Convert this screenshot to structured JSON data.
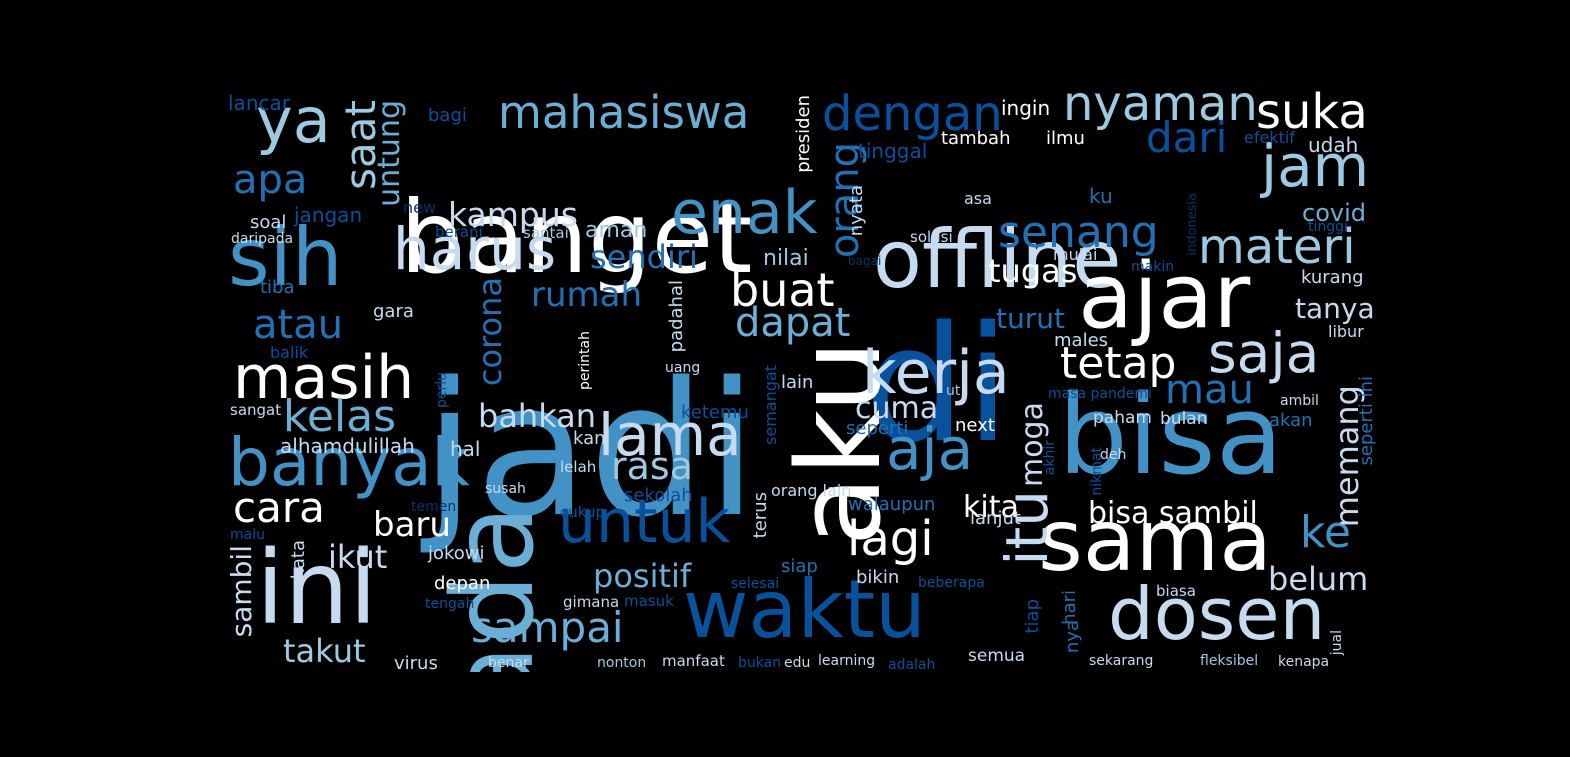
{
  "words": [
    {
      "text": "jadi",
      "c": 4
    },
    {
      "text": "di",
      "c": 6
    },
    {
      "text": "banget",
      "c": 0
    },
    {
      "text": "offline",
      "c": 1
    },
    {
      "text": "bisa",
      "c": 4
    },
    {
      "text": "ada",
      "c": 3
    },
    {
      "text": "aku",
      "c": 0
    },
    {
      "text": "ini",
      "c": 1
    },
    {
      "text": "sih",
      "c": 4
    },
    {
      "text": "ajar",
      "c": 0
    },
    {
      "text": "waktu",
      "c": 6
    },
    {
      "text": "sama",
      "c": 0
    },
    {
      "text": "dosen",
      "c": 1
    },
    {
      "text": "banyak",
      "c": 4
    },
    {
      "text": "masih",
      "c": 0
    },
    {
      "text": "harus",
      "c": 1
    },
    {
      "text": "enak",
      "c": 4
    },
    {
      "text": "kerja",
      "c": 1
    },
    {
      "text": "lama",
      "c": 1
    },
    {
      "text": "untuk",
      "c": 6
    },
    {
      "text": "saja",
      "c": 1
    },
    {
      "text": "aja",
      "c": 4
    },
    {
      "text": "jam",
      "c": 2
    },
    {
      "text": "ya",
      "c": 2
    },
    {
      "text": "mahasiswa",
      "c": 3
    },
    {
      "text": "dengan",
      "c": 6
    },
    {
      "text": "nyaman",
      "c": 2
    },
    {
      "text": "suka",
      "c": 0
    },
    {
      "text": "materi",
      "c": 2
    },
    {
      "text": "senang",
      "c": 5
    },
    {
      "text": "buat",
      "c": 0
    },
    {
      "text": "dapat",
      "c": 3
    },
    {
      "text": "tetap",
      "c": 0
    },
    {
      "text": "lagi",
      "c": 0
    },
    {
      "text": "sampai",
      "c": 3
    },
    {
      "text": "kelas",
      "c": 3
    },
    {
      "text": "rasa",
      "c": 2
    },
    {
      "text": "cara",
      "c": 0
    },
    {
      "text": "apa",
      "c": 5
    },
    {
      "text": "atau",
      "c": 5
    },
    {
      "text": "dari",
      "c": 6
    },
    {
      "text": "saat",
      "c": 2
    },
    {
      "text": "itu",
      "c": 1
    },
    {
      "text": "mau",
      "c": 5
    },
    {
      "text": "ke",
      "c": 4
    },
    {
      "text": "orang",
      "c": 5
    },
    {
      "text": "untung",
      "c": 3
    },
    {
      "text": "kampus",
      "c": 1
    },
    {
      "text": "rumah",
      "c": 5
    },
    {
      "text": "sendiri",
      "c": 5
    },
    {
      "text": "tugas",
      "c": 0
    },
    {
      "text": "positif",
      "c": 3
    },
    {
      "text": "baru",
      "c": 0
    },
    {
      "text": "bahkan",
      "c": 1
    },
    {
      "text": "cuma",
      "c": 1
    },
    {
      "text": "kita",
      "c": 0
    },
    {
      "text": "bisa sambil",
      "c": 0
    },
    {
      "text": "belum",
      "c": 1
    },
    {
      "text": "memang",
      "c": 1
    },
    {
      "text": "moga",
      "c": 1
    },
    {
      "text": "takut",
      "c": 2
    },
    {
      "text": "ikut",
      "c": 1
    },
    {
      "text": "corona",
      "c": 5
    },
    {
      "text": "turut",
      "c": 5
    },
    {
      "text": "tanya",
      "c": 1
    },
    {
      "text": "sambil",
      "c": 1
    },
    {
      "text": "covid",
      "c": 3
    },
    {
      "text": "aman",
      "c": 2
    },
    {
      "text": "nilai",
      "c": 2
    },
    {
      "text": "alhamdulillah",
      "c": 1
    },
    {
      "text": "hal",
      "c": 1
    },
    {
      "text": "kurang",
      "c": 1
    },
    {
      "text": "lancar",
      "c": 6
    },
    {
      "text": "bagi",
      "c": 6
    },
    {
      "text": "ingin",
      "c": 0
    },
    {
      "text": "tambah",
      "c": 0
    },
    {
      "text": "ilmu",
      "c": 0
    },
    {
      "text": "udah",
      "c": 1
    },
    {
      "text": "efektif",
      "c": 6
    },
    {
      "text": "tinggal",
      "c": 6
    },
    {
      "text": "presiden",
      "c": 0
    },
    {
      "text": "ku",
      "c": 5
    },
    {
      "text": "jangan",
      "c": 6
    },
    {
      "text": "soal",
      "c": 1
    },
    {
      "text": "new",
      "c": 7
    },
    {
      "text": "asa",
      "c": 1
    },
    {
      "text": "nyata",
      "c": 1
    },
    {
      "text": "tinggi",
      "c": 6
    },
    {
      "text": "daripada",
      "c": 1
    },
    {
      "text": "berani",
      "c": 6
    },
    {
      "text": "santai",
      "c": 2
    },
    {
      "text": "solusi",
      "c": 1
    },
    {
      "text": "indonesia",
      "c": 7
    },
    {
      "text": "mulai",
      "c": 1
    },
    {
      "text": "makin",
      "c": 6
    },
    {
      "text": "bagai",
      "c": 7
    },
    {
      "text": "tiba",
      "c": 5
    },
    {
      "text": "gara",
      "c": 1
    },
    {
      "text": "padahal",
      "c": 1
    },
    {
      "text": "males",
      "c": 1
    },
    {
      "text": "libur",
      "c": 1
    },
    {
      "text": "balik",
      "c": 6
    },
    {
      "text": "perintah",
      "c": 0
    },
    {
      "text": "uang",
      "c": 1
    },
    {
      "text": "perlu",
      "c": 6
    },
    {
      "text": "lain",
      "c": 1
    },
    {
      "text": "ut",
      "c": 2
    },
    {
      "text": "masa pandemi",
      "c": 6
    },
    {
      "text": "ambil",
      "c": 1
    },
    {
      "text": "seperti ini",
      "c": 5
    },
    {
      "text": "sangat",
      "c": 1
    },
    {
      "text": "ketemu",
      "c": 6
    },
    {
      "text": "semangat",
      "c": 6
    },
    {
      "text": "paham",
      "c": 1
    },
    {
      "text": "bulan",
      "c": 1
    },
    {
      "text": "akan",
      "c": 5
    },
    {
      "text": "kan",
      "c": 1
    },
    {
      "text": "seperti",
      "c": 5
    },
    {
      "text": "next",
      "c": 0
    },
    {
      "text": "akhir",
      "c": 6
    },
    {
      "text": "deh",
      "c": 1
    },
    {
      "text": "lelah",
      "c": 1
    },
    {
      "text": "sekolah",
      "c": 6
    },
    {
      "text": "nikmat",
      "c": 6
    },
    {
      "text": "susah",
      "c": 1
    },
    {
      "text": "orang lain",
      "c": 1
    },
    {
      "text": "temen",
      "c": 7
    },
    {
      "text": "terus",
      "c": 1
    },
    {
      "text": "cukup",
      "c": 6
    },
    {
      "text": "walaupun",
      "c": 5
    },
    {
      "text": "lanjut",
      "c": 1
    },
    {
      "text": "malu",
      "c": 6
    },
    {
      "text": "kata",
      "c": 1
    },
    {
      "text": "jokowi",
      "c": 1
    },
    {
      "text": "siap",
      "c": 5
    },
    {
      "text": "bikin",
      "c": 1
    },
    {
      "text": "depan",
      "c": 0
    },
    {
      "text": "selesai",
      "c": 6
    },
    {
      "text": "beberapa",
      "c": 6
    },
    {
      "text": "hari",
      "c": 5
    },
    {
      "text": "tiap",
      "c": 6
    },
    {
      "text": "biasa",
      "c": 1
    },
    {
      "text": "gimana",
      "c": 1
    },
    {
      "text": "masuk",
      "c": 6
    },
    {
      "text": "tengah",
      "c": 6
    },
    {
      "text": "nya",
      "c": 5
    },
    {
      "text": "jual",
      "c": 1
    },
    {
      "text": "virus",
      "c": 1
    },
    {
      "text": "benar",
      "c": 1
    },
    {
      "text": "nonton",
      "c": 2
    },
    {
      "text": "manfaat",
      "c": 1
    },
    {
      "text": "bukan",
      "c": 6
    },
    {
      "text": "edu",
      "c": 1
    },
    {
      "text": "learning",
      "c": 1
    },
    {
      "text": "adalah",
      "c": 6
    },
    {
      "text": "semua",
      "c": 1
    },
    {
      "text": "sekarang",
      "c": 1
    },
    {
      "text": "fleksibel",
      "c": 2
    },
    {
      "text": "kenapa",
      "c": 1
    }
  ]
}
